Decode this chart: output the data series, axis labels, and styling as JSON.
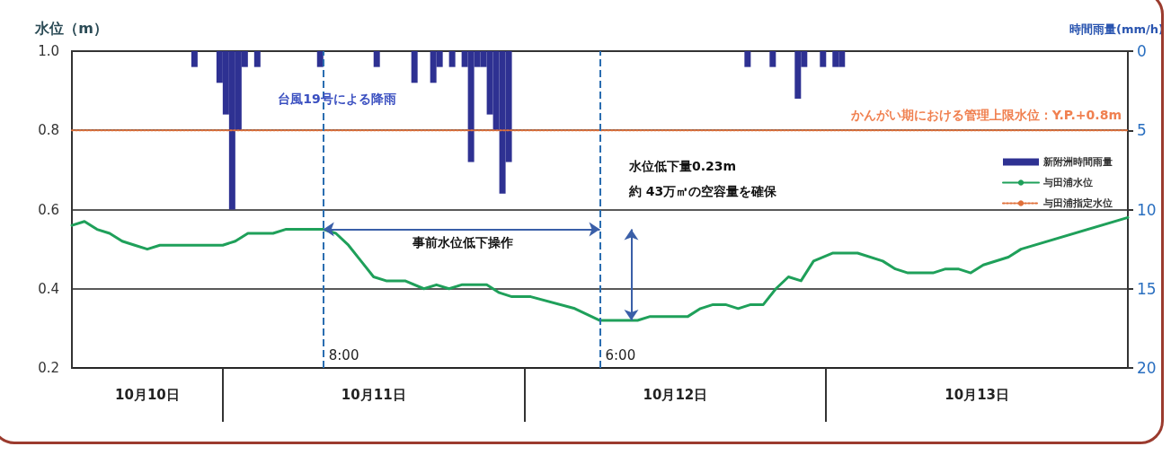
{
  "chart_data": {
    "type": "line",
    "ylabel": "水位（m）",
    "y2label": "時間雨量(mm/h)",
    "ylim": [
      0.2,
      1.0
    ],
    "yticks": [
      0.2,
      0.4,
      0.6,
      0.8,
      {
        "value": 1.0,
        "label": "1.0"
      }
    ],
    "y2lim": [
      20,
      0
    ],
    "y2ticks": [
      0,
      5,
      10,
      15,
      20
    ],
    "xlim": [
      "--10-10T12:00",
      "--10-14T00:00"
    ],
    "xticks": [
      {
        "value": "--10-10T18:00",
        "label": "10月10日"
      },
      {
        "value": "--10-11T12:00",
        "label": "10月11日"
      },
      {
        "value": "--10-12T12:00",
        "label": "10月12日"
      },
      {
        "value": "--10-13T12:00",
        "label": "10月13日"
      }
    ],
    "grid": "y",
    "legend": "right",
    "marker": "none",
    "series": [
      {
        "name": "新附洲時間雨量",
        "type": "bar",
        "axis": "y2",
        "color": "#2e3192",
        "x": [
          "--10-10T21:45",
          "--10-10T23:45",
          "--10-11T00:15",
          "--10-11T00:45",
          "--10-11T01:15",
          "--10-11T01:45",
          "--10-11T02:45",
          "--10-11T07:45",
          "--10-11T12:15",
          "--10-11T15:15",
          "--10-11T16:45",
          "--10-11T17:15",
          "--10-11T18:15",
          "--10-11T19:15",
          "--10-11T19:45",
          "--10-11T20:15",
          "--10-11T20:45",
          "--10-11T21:15",
          "--10-11T21:45",
          "--10-11T22:15",
          "--10-11T22:45",
          "--10-12T17:45",
          "--10-12T19:45",
          "--10-12T21:45",
          "--10-12T22:15",
          "--10-12T23:45",
          "--10-13T00:45",
          "--10-13T01:15"
        ],
        "values": [
          1,
          2,
          4,
          10,
          5,
          1,
          1,
          1,
          1,
          2,
          2,
          1,
          1,
          1,
          7,
          1,
          1,
          4,
          5,
          9,
          7,
          1,
          1,
          3,
          1,
          1,
          1,
          1
        ]
      },
      {
        "name": "与田浦水位",
        "color": "#1fa05a",
        "line_style": "solid",
        "x": [
          "--10-10T12:00",
          "--10-10T13:00",
          "--10-10T14:00",
          "--10-10T15:00",
          "--10-10T16:00",
          "--10-10T17:00",
          "--10-10T18:00",
          "--10-10T19:00",
          "--10-11T00:00",
          "--10-11T01:00",
          "--10-11T02:00",
          "--10-11T04:00",
          "--10-11T05:00",
          "--10-11T08:00",
          "--10-11T09:00",
          "--10-11T10:00",
          "--10-11T11:00",
          "--10-11T12:00",
          "--10-11T13:00",
          "--10-11T14:30",
          "--10-11T16:00",
          "--10-11T17:00",
          "--10-11T18:00",
          "--10-11T19:00",
          "--10-11T21:00",
          "--10-11T22:00",
          "--10-11T23:00",
          "--10-12T00:30",
          "--10-12T04:00",
          "--10-12T06:00",
          "--10-12T09:00",
          "--10-12T10:00",
          "--10-12T13:00",
          "--10-12T14:00",
          "--10-12T15:00",
          "--10-12T16:00",
          "--10-12T17:00",
          "--10-12T18:00",
          "--10-12T19:00",
          "--10-12T20:00",
          "--10-12T21:00",
          "--10-12T22:00",
          "--10-12T23:00",
          "--10-13T00:30",
          "--10-13T02:30",
          "--10-13T04:30",
          "--10-13T05:30",
          "--10-13T06:30",
          "--10-13T08:30",
          "--10-13T09:30",
          "--10-13T10:30",
          "--10-13T11:30",
          "--10-13T12:30",
          "--10-13T14:30",
          "--10-13T15:30",
          "--10-14T00:00"
        ],
        "values": [
          0.56,
          0.57,
          0.55,
          0.54,
          0.52,
          0.51,
          0.5,
          0.51,
          0.51,
          0.52,
          0.54,
          0.54,
          0.55,
          0.55,
          0.54,
          0.51,
          0.47,
          0.43,
          0.42,
          0.42,
          0.4,
          0.41,
          0.4,
          0.41,
          0.41,
          0.39,
          0.38,
          0.38,
          0.35,
          0.32,
          0.32,
          0.33,
          0.33,
          0.35,
          0.36,
          0.36,
          0.35,
          0.36,
          0.36,
          0.4,
          0.43,
          0.42,
          0.47,
          0.49,
          0.49,
          0.47,
          0.45,
          0.44,
          0.44,
          0.45,
          0.45,
          0.44,
          0.46,
          0.48,
          0.5,
          0.58
        ]
      },
      {
        "name": "与田浦指定水位",
        "color": "#e0703a",
        "line_style": "dotted",
        "x": [
          "--10-10T12:00",
          "--10-14T00:00"
        ],
        "values": [
          0.8,
          0.8
        ]
      }
    ],
    "ref_lines": [
      {
        "axis": "x",
        "value": "--10-11T08:00",
        "label": "8:00",
        "color": "#2a6db0",
        "line_style": "dashed"
      },
      {
        "axis": "x",
        "value": "--10-12T06:00",
        "label": "6:00",
        "color": "#2a6db0",
        "line_style": "dashed"
      }
    ],
    "annotations": [
      "台風19号による降雨",
      "かんがい期における管理上限水位：Y.P.+0.8m",
      "水位低下量0.23m",
      "約 43万㎥の空容量を確保",
      "事前水位低下操作"
    ]
  }
}
